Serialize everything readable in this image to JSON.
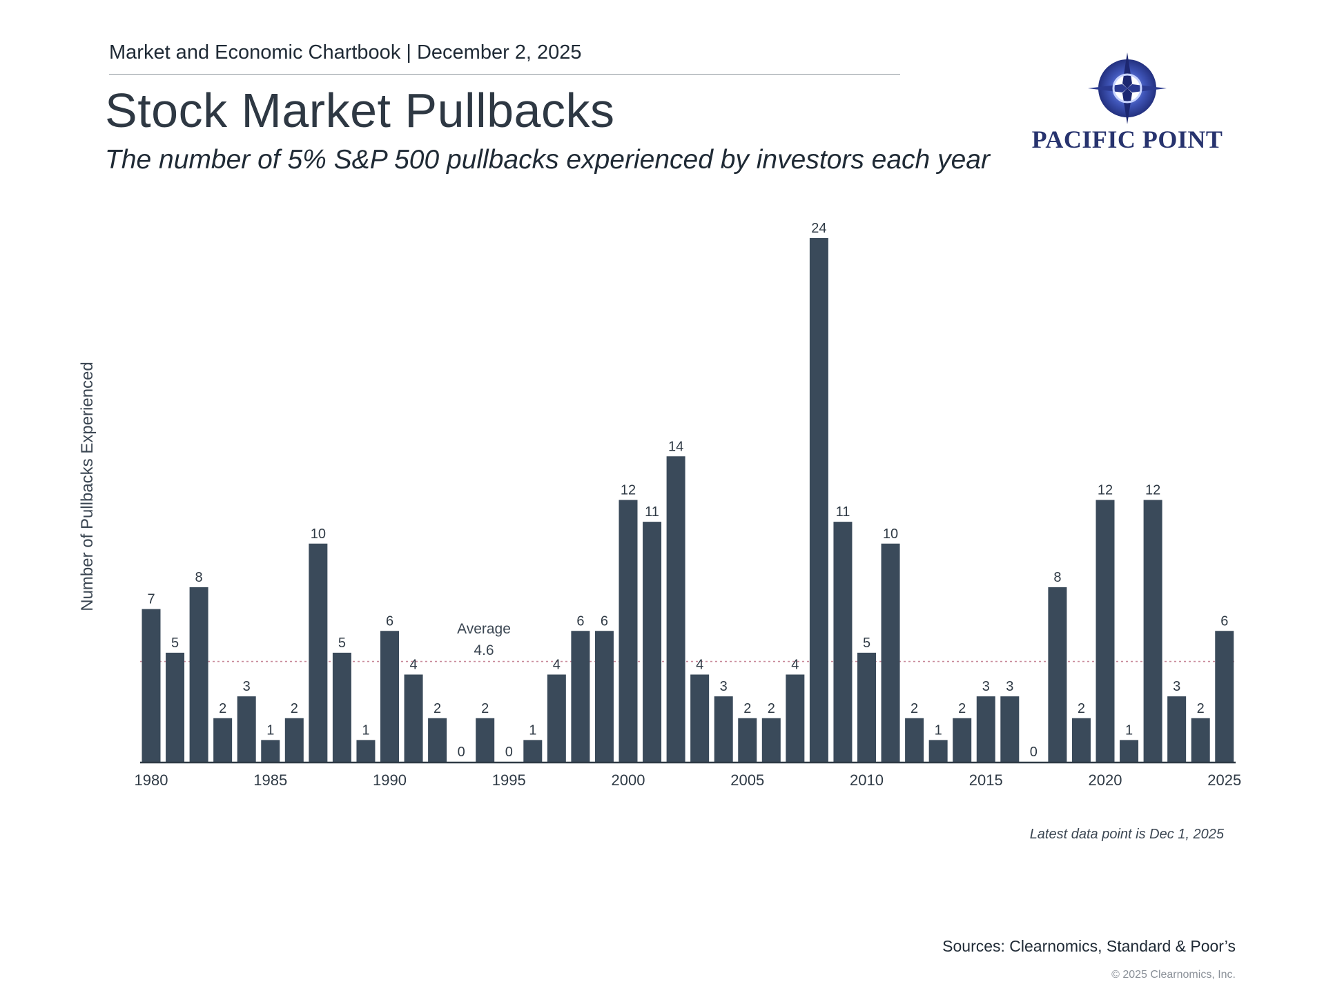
{
  "header": {
    "chartbook": "Market and Economic Chartbook | December 2, 2025",
    "title": "Stock Market Pullbacks",
    "subtitle": "The number of 5% S&P 500 pullbacks experienced by investors each year"
  },
  "logo": {
    "text": "PACIFIC POINT",
    "icon": "compass-star-logo-icon"
  },
  "footer": {
    "note": "Latest data point is Dec 1, 2025",
    "sources": "Sources: Clearnomics, Standard & Poor’s",
    "copyright": "© 2025 Clearnomics, Inc."
  },
  "chart_data": {
    "type": "bar",
    "ylabel": "Number of Pullbacks Experienced",
    "xlabel": "",
    "x": [
      1980,
      1981,
      1982,
      1983,
      1984,
      1985,
      1986,
      1987,
      1988,
      1989,
      1990,
      1991,
      1992,
      1993,
      1994,
      1995,
      1996,
      1997,
      1998,
      1999,
      2000,
      2001,
      2002,
      2003,
      2004,
      2005,
      2006,
      2007,
      2008,
      2009,
      2010,
      2011,
      2012,
      2013,
      2014,
      2015,
      2016,
      2017,
      2018,
      2019,
      2020,
      2021,
      2022,
      2023,
      2024,
      2025
    ],
    "values": [
      7,
      5,
      8,
      2,
      3,
      1,
      2,
      10,
      5,
      1,
      6,
      4,
      2,
      0,
      2,
      0,
      1,
      4,
      6,
      6,
      12,
      11,
      14,
      4,
      3,
      2,
      2,
      4,
      24,
      11,
      5,
      10,
      2,
      1,
      2,
      3,
      3,
      0,
      8,
      2,
      12,
      1,
      12,
      3,
      2,
      6
    ],
    "x_ticks": [
      1980,
      1985,
      1990,
      1995,
      2000,
      2005,
      2010,
      2015,
      2020,
      2025
    ],
    "ylim": [
      0,
      24
    ],
    "average": {
      "value": 4.6,
      "label": "Average",
      "value_label": "4.6"
    },
    "grid": false,
    "bar_color": "#3a4a5a",
    "average_line_color": "#c98a9a"
  }
}
